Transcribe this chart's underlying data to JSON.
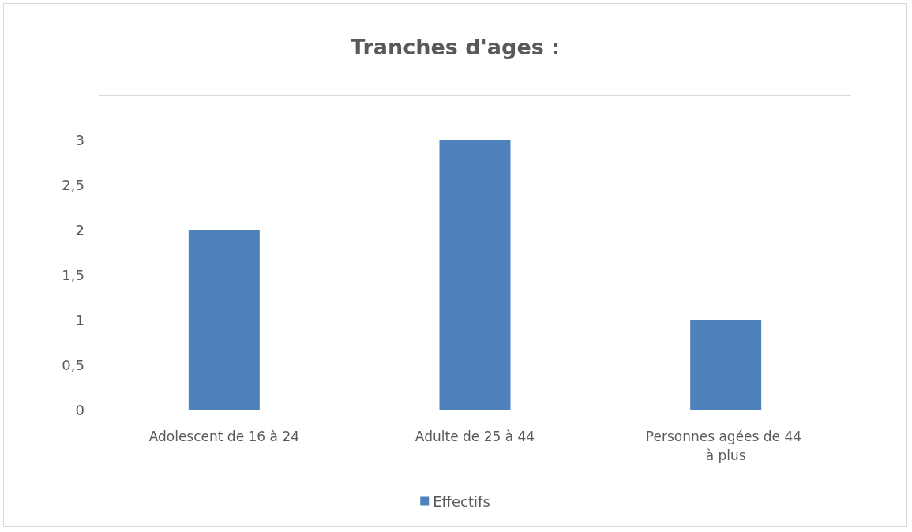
{
  "chart_data": {
    "type": "bar",
    "title": "Tranches d'ages :",
    "categories": [
      "Adolescent de 16 à 24",
      "Adulte de 25 à 44",
      "Personnes agées de 44 à plus"
    ],
    "series": [
      {
        "name": "Effectifs",
        "color": "#4f81bd",
        "values": [
          2,
          3,
          1
        ]
      }
    ],
    "ylim": [
      0,
      3.5
    ],
    "yticks": [
      0,
      {
        "value": 0.5,
        "label": "0,5"
      },
      1,
      {
        "value": 1.5,
        "label": "1,5"
      },
      2,
      {
        "value": 2.5,
        "label": "2,5"
      },
      3,
      {
        "value": 3.5,
        "label": null
      }
    ],
    "grid": "y",
    "legend": "bottom"
  }
}
